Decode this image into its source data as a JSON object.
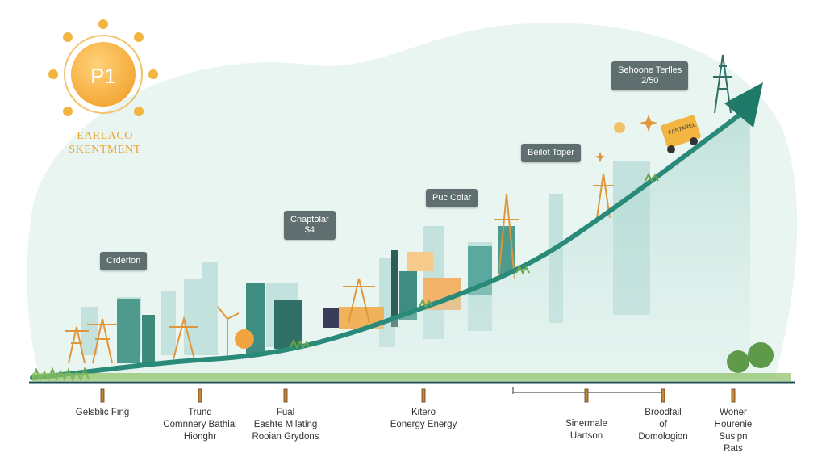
{
  "badge": {
    "label": "P1",
    "caption_line1": "EARLACO",
    "caption_line2": "SKENTMENT",
    "color": "#f5b342"
  },
  "callouts": [
    {
      "id": "c1",
      "lines": [
        "Crderion"
      ]
    },
    {
      "id": "c2",
      "lines": [
        "Cnaptolar",
        "$4"
      ]
    },
    {
      "id": "c3",
      "lines": [
        "Puc Colar"
      ]
    },
    {
      "id": "c4",
      "lines": [
        "Beilot Toper"
      ]
    },
    {
      "id": "c5",
      "lines": [
        "Sehoone Terfles",
        "2/50"
      ]
    }
  ],
  "timeline": [
    {
      "id": "t1",
      "lines": [
        "Gelsblic Fing"
      ]
    },
    {
      "id": "t2",
      "lines": [
        "Trund",
        "Comnnery Bathial",
        "Hionghr"
      ]
    },
    {
      "id": "t3",
      "lines": [
        "Fual",
        "Eashte Milating",
        "Rooian Grydons"
      ]
    },
    {
      "id": "t4",
      "lines": [
        "Kitero",
        "Eonergy Energy"
      ]
    },
    {
      "id": "t5",
      "lines": [
        "Sinermale",
        "Uartson"
      ]
    },
    {
      "id": "t6",
      "lines": [
        "Broodfail",
        "of",
        "Domologion"
      ]
    },
    {
      "id": "t7",
      "lines": [
        "Woner",
        "Hourenie",
        "Susipn",
        "Rats"
      ]
    }
  ],
  "truck_sign": "FASTAREL",
  "colors": {
    "curve": "#2a8a7a",
    "arrow": "#1f7a6a",
    "ground": "#1e4f4f",
    "grass": "#6aa64a",
    "marker": "#c8873a"
  }
}
